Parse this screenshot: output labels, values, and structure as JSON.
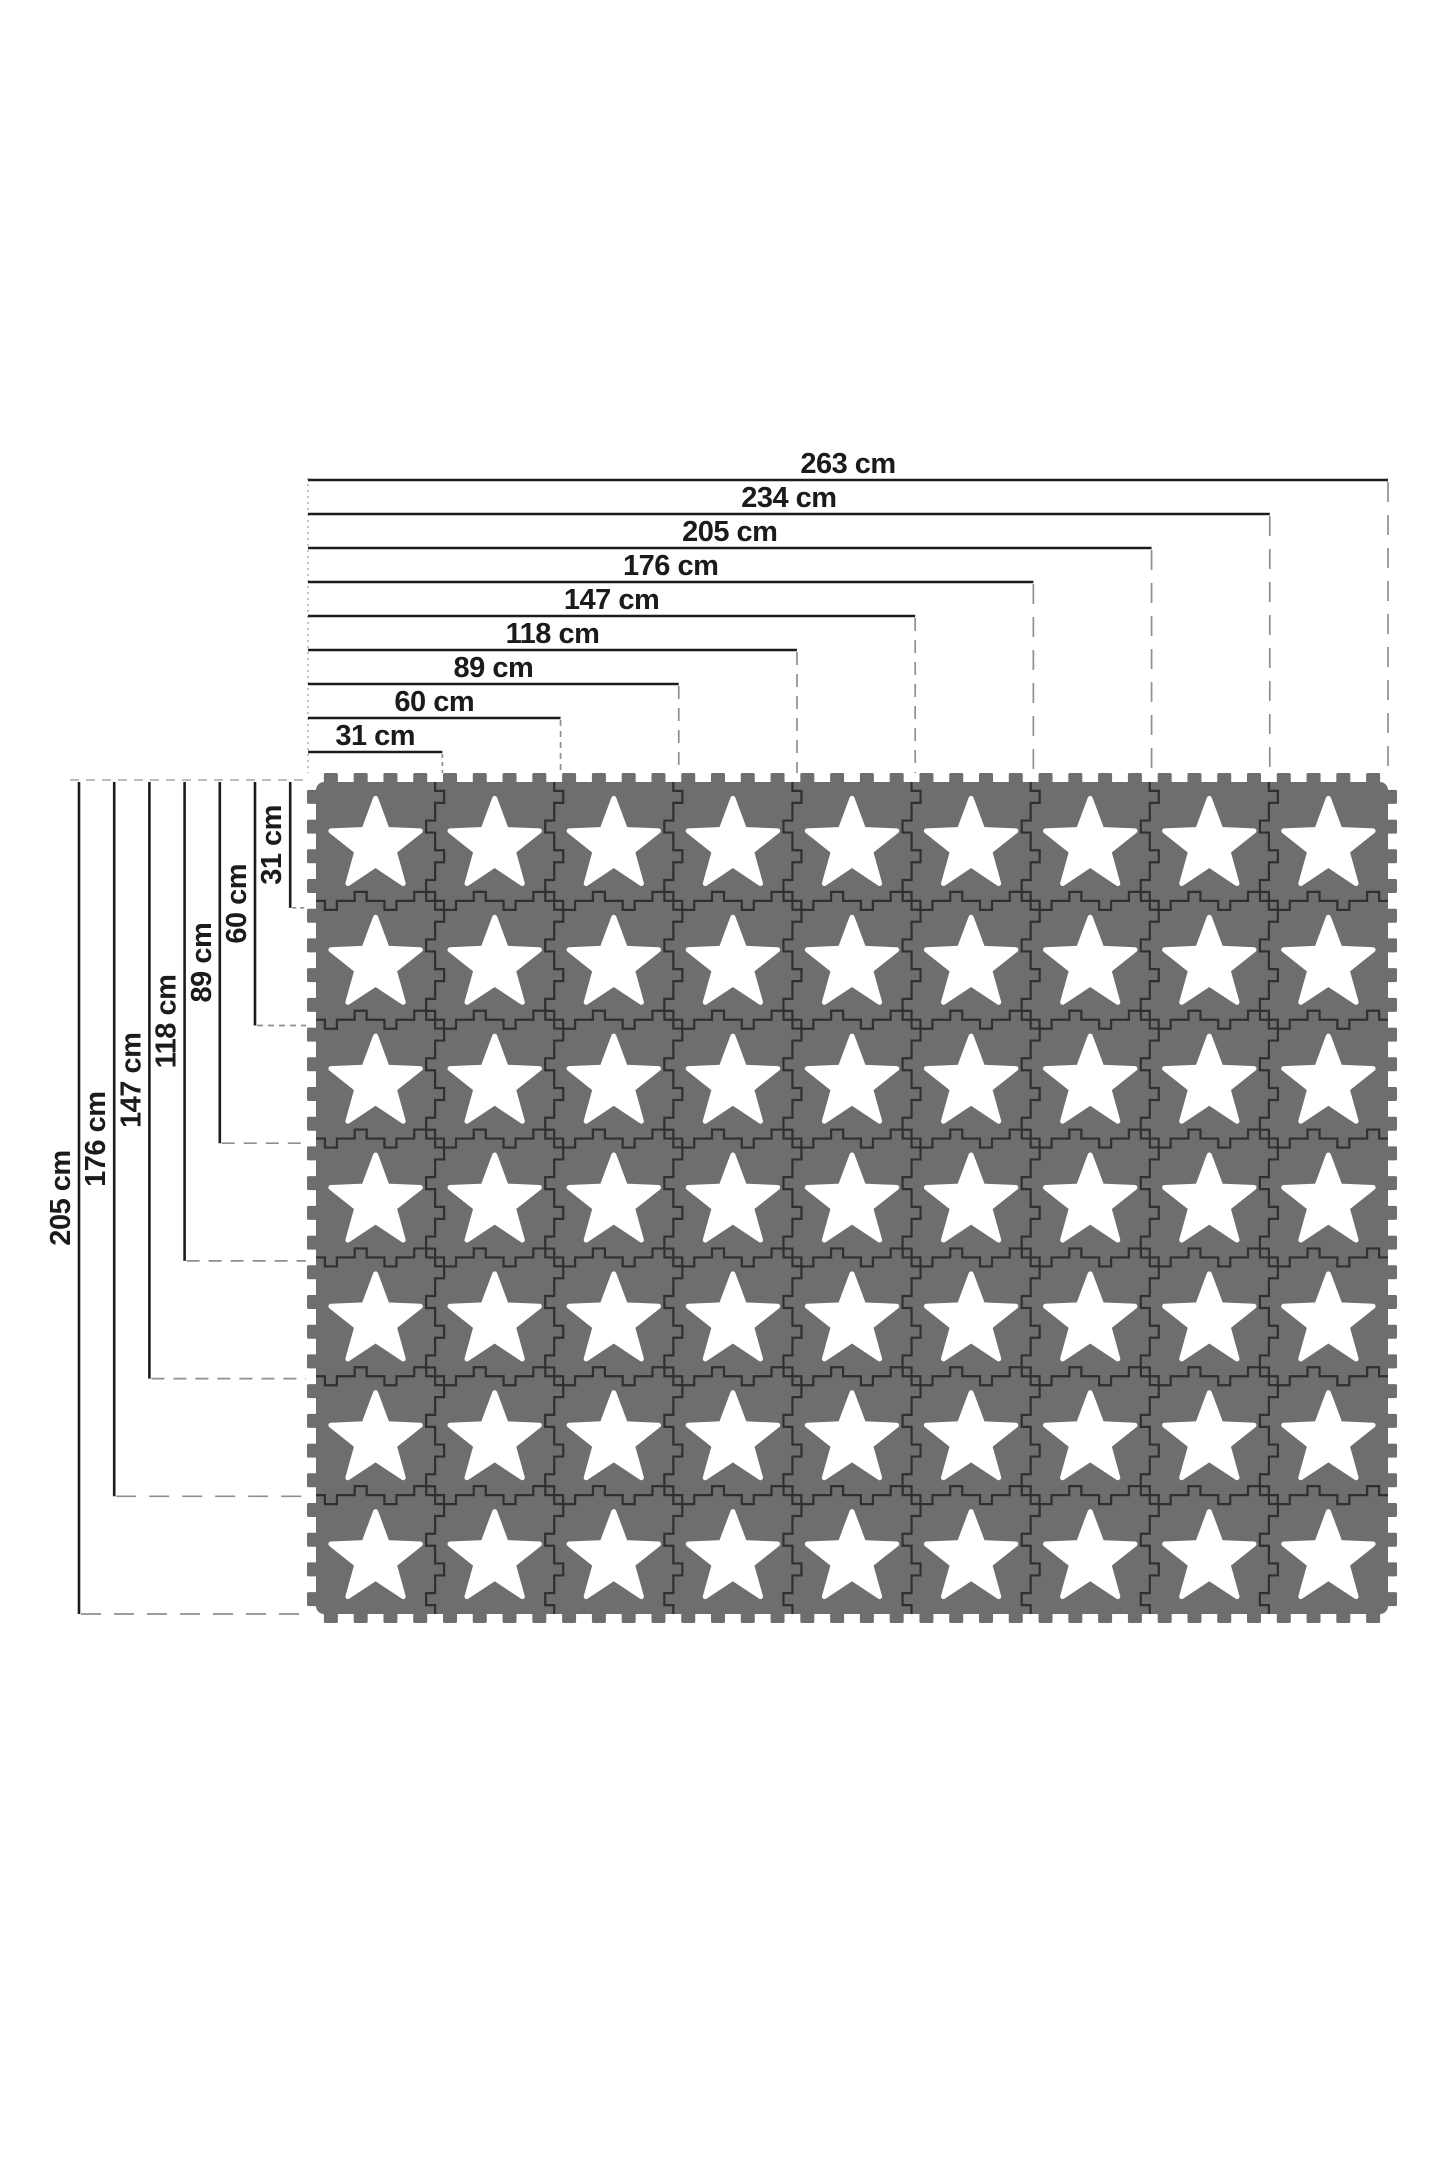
{
  "diagram": {
    "description": "Interlocking foam puzzle play mat size diagram, 9 x 7 star tiles",
    "unit": "cm",
    "top_dimensions": [
      {
        "label": "263 cm",
        "value_cm": 263
      },
      {
        "label": "234 cm",
        "value_cm": 234
      },
      {
        "label": "205 cm",
        "value_cm": 205
      },
      {
        "label": "176 cm",
        "value_cm": 176
      },
      {
        "label": "147 cm",
        "value_cm": 147
      },
      {
        "label": "118 cm",
        "value_cm": 118
      },
      {
        "label": "89 cm",
        "value_cm": 89
      },
      {
        "label": "60 cm",
        "value_cm": 60
      },
      {
        "label": "31 cm",
        "value_cm": 31
      }
    ],
    "left_dimensions": [
      {
        "label": "205 cm",
        "value_cm": 205
      },
      {
        "label": "176 cm",
        "value_cm": 176
      },
      {
        "label": "147 cm",
        "value_cm": 147
      },
      {
        "label": "118 cm",
        "value_cm": 118
      },
      {
        "label": "89 cm",
        "value_cm": 89
      },
      {
        "label": "60 cm",
        "value_cm": 60
      },
      {
        "label": "31 cm",
        "value_cm": 31
      }
    ],
    "mat": {
      "columns": 9,
      "rows": 7,
      "total_width_cm": 263,
      "total_height_cm": 205,
      "tile_size_cm": 31,
      "tile_motif": "star",
      "colors": {
        "tile_gray": "#6e6e6e",
        "seam_dark": "#303030",
        "star_white": "#ffffff",
        "dimension_line": "#1c1c1c",
        "dashed_line": "#8f8f8f",
        "guide_dotted": "#b0b0b0",
        "background": "#ffffff"
      }
    }
  }
}
